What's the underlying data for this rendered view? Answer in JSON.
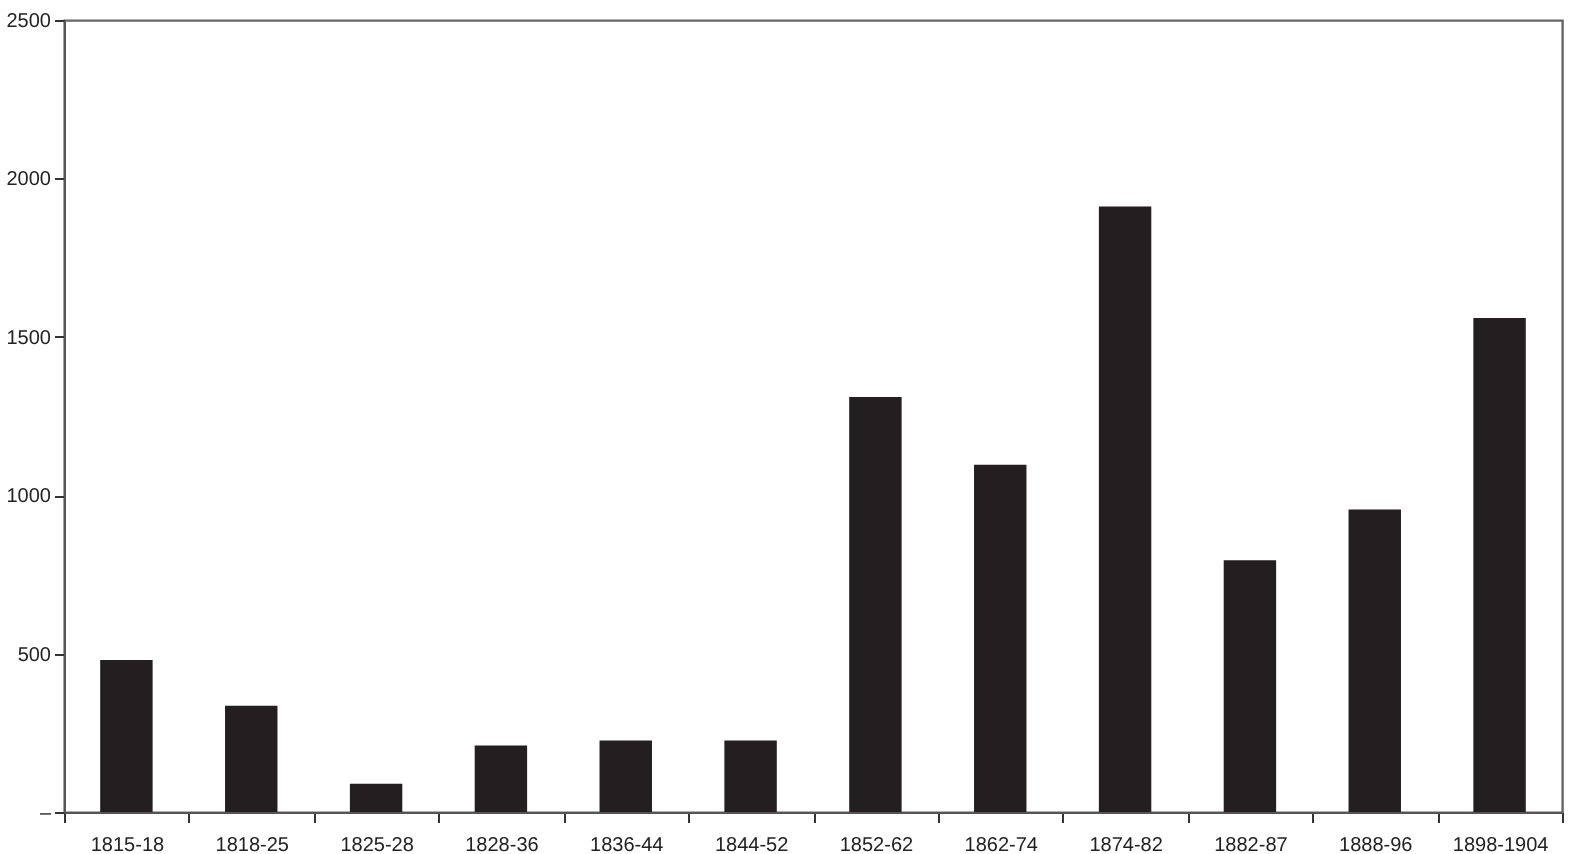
{
  "chart_data": {
    "type": "bar",
    "categories": [
      "1815-18",
      "1818-25",
      "1825-28",
      "1828-36",
      "1836-44",
      "1844-52",
      "1852-62",
      "1862-74",
      "1874-82",
      "1882-87",
      "1888-96",
      "1898-1904"
    ],
    "values": [
      480,
      335,
      89,
      210,
      226,
      226,
      1310,
      1096,
      1911,
      795,
      955,
      1559
    ],
    "color": "#231f20",
    "ylim": [
      0,
      2500
    ],
    "yticks": [
      {
        "value": 0,
        "label": "–"
      },
      500,
      1000,
      1500,
      2000,
      2500
    ]
  }
}
